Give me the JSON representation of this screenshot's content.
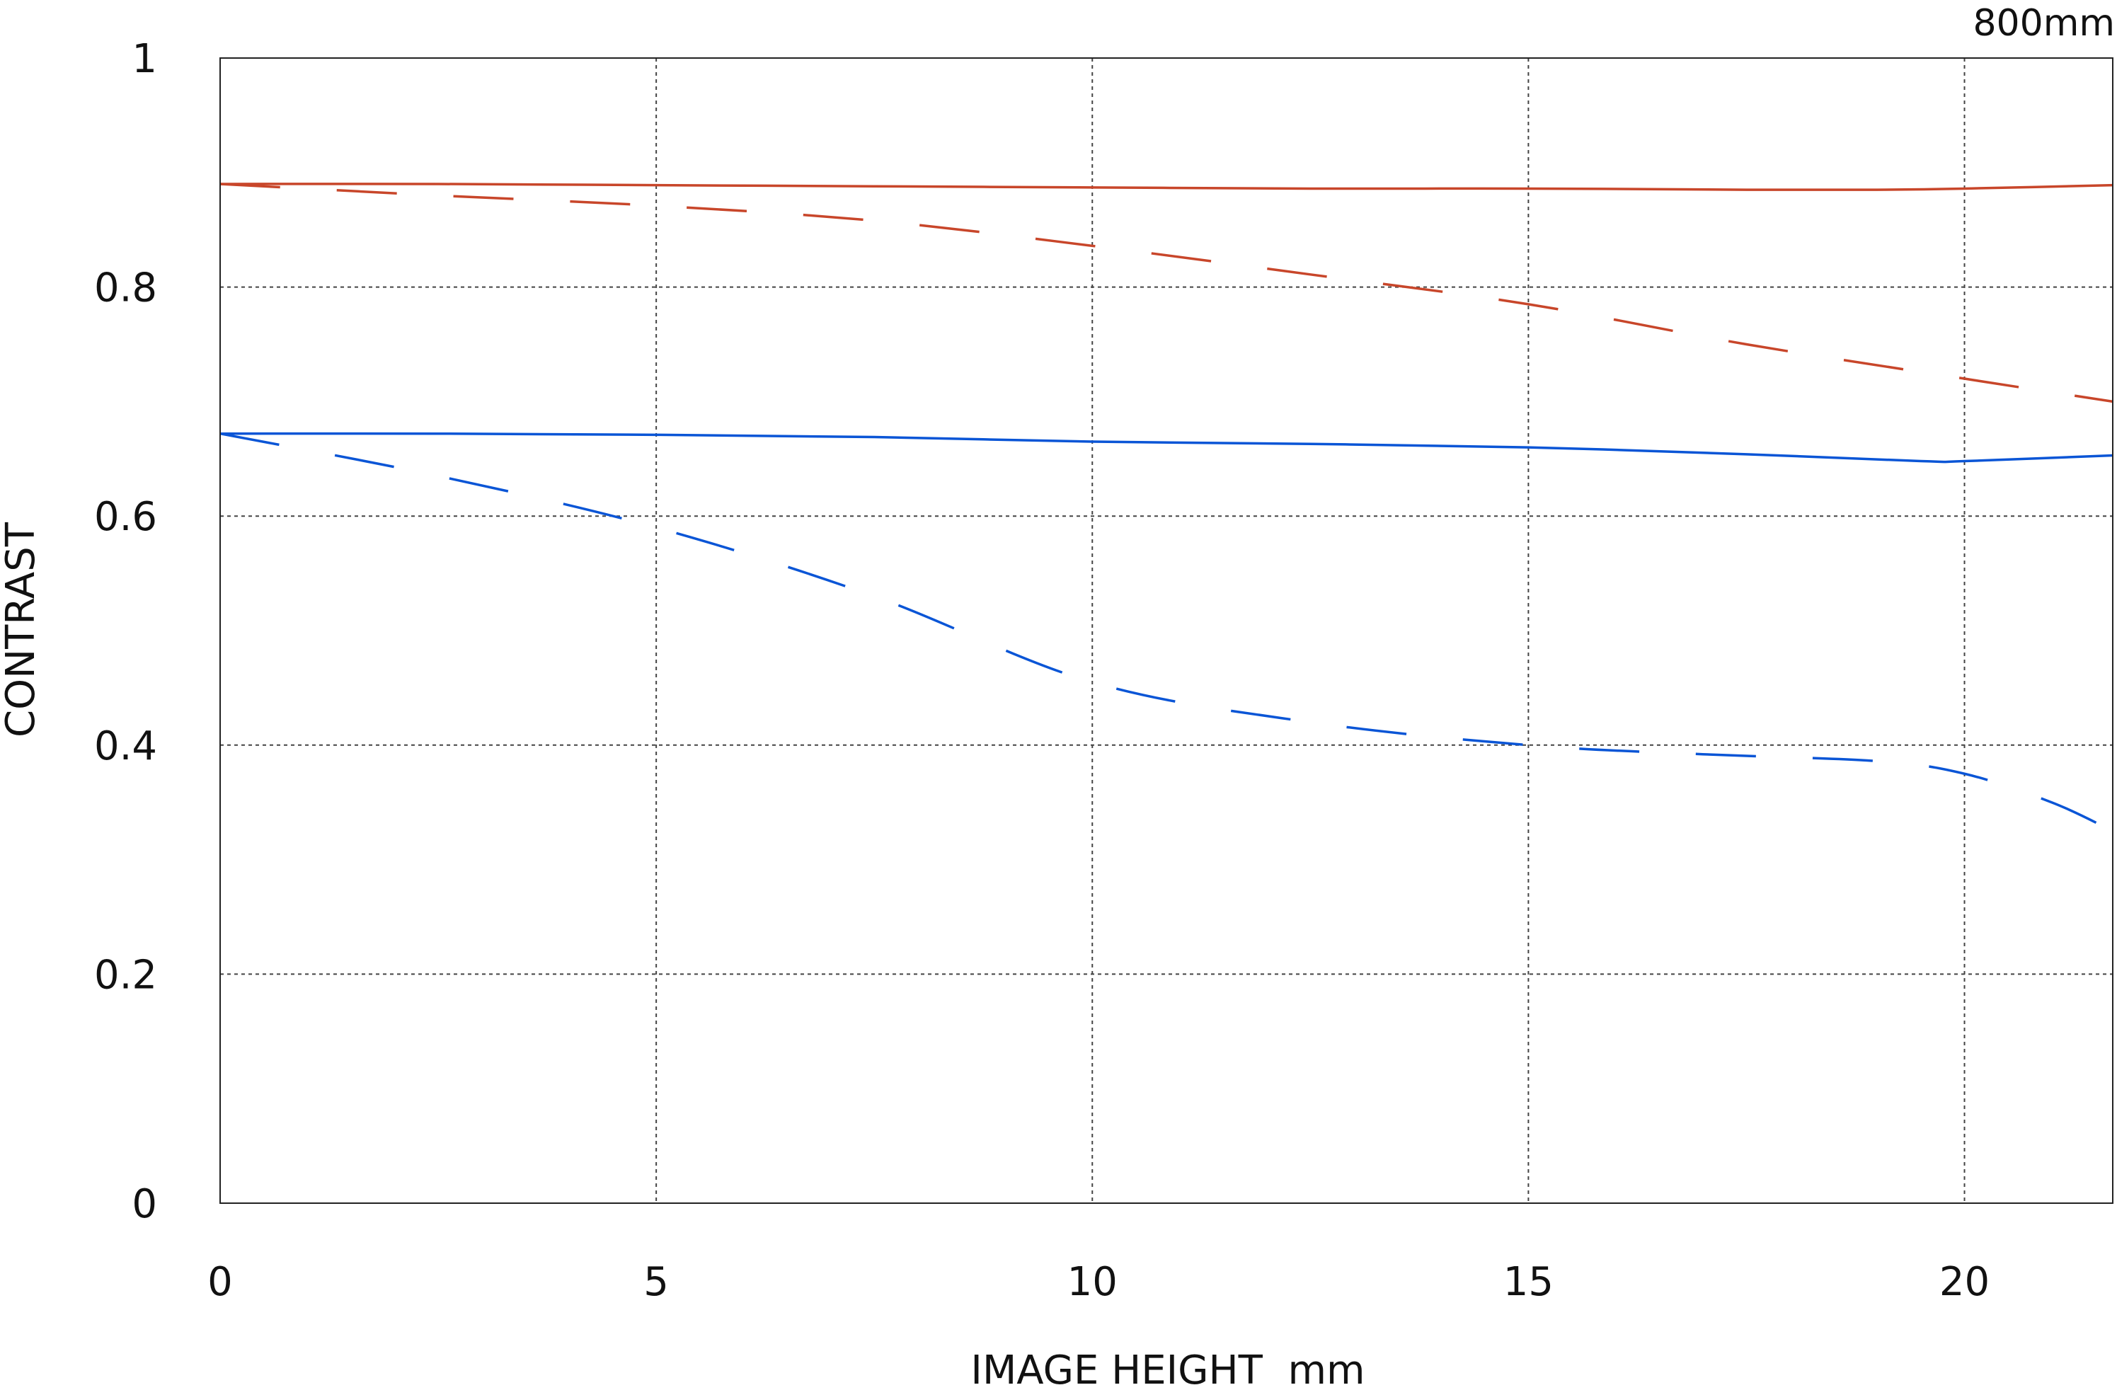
{
  "chart_data": {
    "type": "line",
    "title": "",
    "corner_label": "800mm",
    "xlabel": "IMAGE HEIGHT  mm",
    "ylabel": "CONTRAST",
    "xlim": [
      0,
      21.7
    ],
    "ylim": [
      0,
      1
    ],
    "x_ticks": [
      0,
      5,
      10,
      15,
      20
    ],
    "x_tick_labels": [
      "0",
      "5",
      "10",
      "15",
      "20"
    ],
    "y_ticks": [
      0,
      0.2,
      0.4,
      0.6,
      0.8,
      1
    ],
    "y_tick_labels": [
      "0",
      "0.2",
      "0.4",
      "0.6",
      "0.8",
      "1"
    ],
    "grid": true,
    "series": [
      {
        "color": "#c8462a",
        "style": "solid",
        "x": [
          0,
          2.5,
          5,
          7.5,
          10,
          12.5,
          15,
          17.5,
          19,
          20,
          21.7
        ],
        "y": [
          0.89,
          0.89,
          0.889,
          0.888,
          0.887,
          0.886,
          0.886,
          0.885,
          0.885,
          0.886,
          0.889
        ]
      },
      {
        "color": "#c8462a",
        "style": "dashed",
        "x": [
          0,
          2.5,
          5,
          7.5,
          10,
          12.5,
          15,
          17.5,
          20,
          21.7
        ],
        "y": [
          0.89,
          0.88,
          0.871,
          0.858,
          0.836,
          0.811,
          0.785,
          0.75,
          0.72,
          0.7
        ]
      },
      {
        "color": "#0a55d6",
        "style": "solid",
        "x": [
          0,
          2.5,
          5,
          7.5,
          10,
          12.5,
          15,
          17.5,
          19.5,
          20,
          21.7
        ],
        "y": [
          0.672,
          0.672,
          0.671,
          0.669,
          0.665,
          0.663,
          0.66,
          0.654,
          0.648,
          0.648,
          0.653
        ]
      },
      {
        "color": "#0a55d6",
        "style": "dashed",
        "x": [
          0,
          2.5,
          5,
          7.5,
          10,
          12.5,
          15,
          17,
          19,
          20,
          21,
          21.7
        ],
        "y": [
          0.672,
          0.635,
          0.59,
          0.53,
          0.455,
          0.42,
          0.4,
          0.392,
          0.386,
          0.375,
          0.35,
          0.325
        ]
      }
    ]
  }
}
